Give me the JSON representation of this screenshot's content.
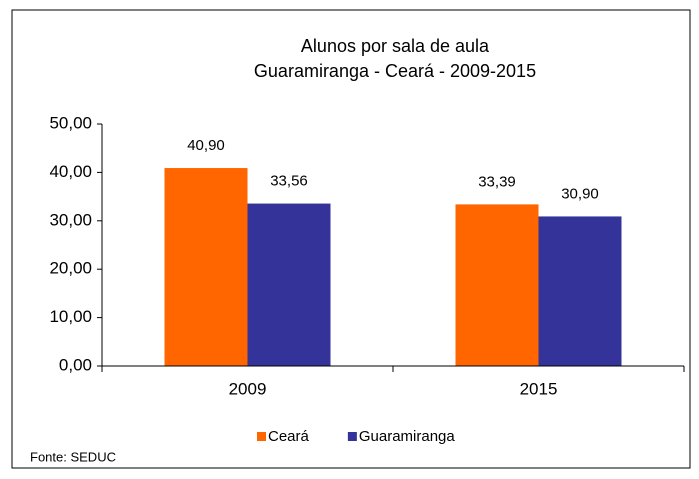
{
  "chart_data": {
    "type": "bar",
    "title": "Alunos por sala de aula",
    "subtitle": "Guaramiranga - Ceará - 2009-2015",
    "categories": [
      "2009",
      "2015"
    ],
    "series": [
      {
        "name": "Ceará",
        "color": "#ff6600",
        "values": [
          40.9,
          33.39
        ],
        "value_labels": [
          "40,90",
          "33,39"
        ]
      },
      {
        "name": "Guaramiranga",
        "color": "#333399",
        "values": [
          33.56,
          30.9
        ],
        "value_labels": [
          "33,56",
          "30,90"
        ]
      }
    ],
    "ylim": [
      0,
      50
    ],
    "yticks": [
      {
        "value": 0,
        "label": "0,00"
      },
      {
        "value": 10,
        "label": "10,00"
      },
      {
        "value": 20,
        "label": "20,00"
      },
      {
        "value": 30,
        "label": "30,00"
      },
      {
        "value": 40,
        "label": "40,00"
      },
      {
        "value": 50,
        "label": "50,00"
      }
    ],
    "grid": false,
    "legend": "bottom",
    "source": "Fonte: SEDUC"
  }
}
